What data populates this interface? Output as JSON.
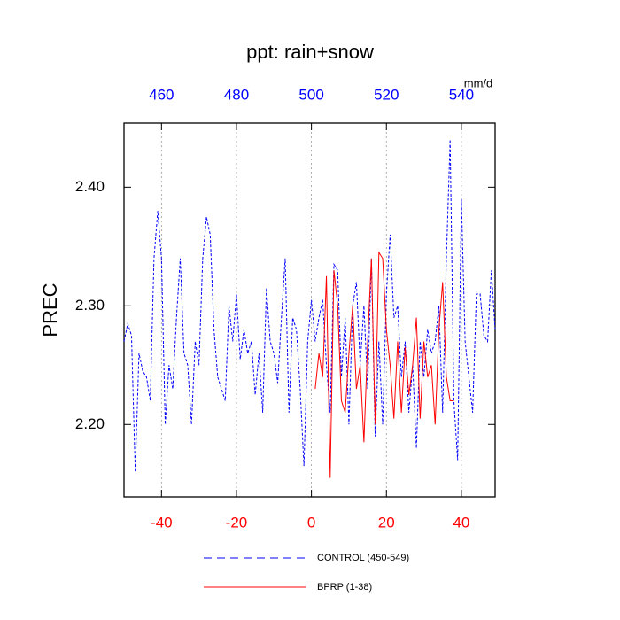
{
  "chart_data": {
    "type": "line",
    "title": "ppt: rain+snow",
    "ylabel": "PREC",
    "units": "mm/d",
    "xlim": [
      -50,
      49
    ],
    "xticks": [
      -40,
      -20,
      0,
      20,
      40
    ],
    "xtick_color": "#ff0000",
    "x2lim": [
      450,
      549
    ],
    "x2ticks": [
      460,
      480,
      500,
      520,
      540
    ],
    "x2tick_color": "#0000ff",
    "ylim": [
      2.139,
      2.454
    ],
    "yticks": [
      {
        "value": 2.2,
        "label": "2.20"
      },
      {
        "value": 2.3,
        "label": "2.30"
      },
      {
        "value": 2.4,
        "label": "2.40"
      }
    ],
    "grid": true,
    "series": [
      {
        "name": "CONTROL (450-549)",
        "color": "#0000ff",
        "dashed": true,
        "x": [
          -50,
          -49,
          -48,
          -47,
          -46,
          -45,
          -44,
          -43,
          -42,
          -41,
          -40,
          -39,
          -38,
          -37,
          -36,
          -35,
          -34,
          -33,
          -32,
          -31,
          -30,
          -29,
          -28,
          -27,
          -26,
          -25,
          -24,
          -23,
          -22,
          -21,
          -20,
          -19,
          -18,
          -17,
          -16,
          -15,
          -14,
          -13,
          -12,
          -11,
          -10,
          -9,
          -8,
          -7,
          -6,
          -5,
          -4,
          -3,
          -2,
          -1,
          0,
          1,
          2,
          3,
          4,
          5,
          6,
          7,
          8,
          9,
          10,
          11,
          12,
          13,
          14,
          15,
          16,
          17,
          18,
          19,
          20,
          21,
          22,
          23,
          24,
          25,
          26,
          27,
          28,
          29,
          30,
          31,
          32,
          33,
          34,
          35,
          36,
          37,
          38,
          39,
          40,
          41,
          42,
          43,
          44,
          45,
          46,
          47,
          48,
          49
        ],
        "values": [
          2.27,
          2.285,
          2.275,
          2.16,
          2.26,
          2.245,
          2.24,
          2.22,
          2.34,
          2.38,
          2.34,
          2.2,
          2.25,
          2.23,
          2.29,
          2.34,
          2.26,
          2.25,
          2.2,
          2.27,
          2.25,
          2.34,
          2.375,
          2.36,
          2.28,
          2.24,
          2.23,
          2.22,
          2.3,
          2.27,
          2.31,
          2.255,
          2.28,
          2.26,
          2.27,
          2.225,
          2.26,
          2.21,
          2.315,
          2.27,
          2.26,
          2.235,
          2.29,
          2.34,
          2.21,
          2.29,
          2.28,
          2.23,
          2.165,
          2.27,
          2.305,
          2.27,
          2.29,
          2.305,
          2.25,
          2.21,
          2.335,
          2.33,
          2.24,
          2.29,
          2.2,
          2.3,
          2.32,
          2.25,
          2.3,
          2.23,
          2.34,
          2.19,
          2.27,
          2.2,
          2.31,
          2.36,
          2.29,
          2.3,
          2.24,
          2.27,
          2.21,
          2.25,
          2.18,
          2.27,
          2.24,
          2.28,
          2.26,
          2.27,
          2.3,
          2.21,
          2.34,
          2.44,
          2.22,
          2.17,
          2.39,
          2.27,
          2.24,
          2.21,
          2.31,
          2.31,
          2.275,
          2.27,
          2.33,
          2.28
        ]
      },
      {
        "name": "BPRP (1-38)",
        "color": "#ff0000",
        "dashed": false,
        "x": [
          1,
          2,
          3,
          4,
          5,
          6,
          7,
          8,
          9,
          10,
          11,
          12,
          13,
          14,
          15,
          16,
          17,
          18,
          19,
          20,
          21,
          22,
          23,
          24,
          25,
          26,
          27,
          28,
          29,
          30,
          31,
          32,
          33,
          34,
          35,
          36,
          37,
          38
        ],
        "values": [
          2.23,
          2.26,
          2.24,
          2.325,
          2.155,
          2.33,
          2.3,
          2.22,
          2.21,
          2.26,
          2.3,
          2.23,
          2.25,
          2.185,
          2.27,
          2.34,
          2.2,
          2.345,
          2.34,
          2.28,
          2.25,
          2.205,
          2.27,
          2.21,
          2.265,
          2.225,
          2.25,
          2.29,
          2.205,
          2.27,
          2.24,
          2.25,
          2.2,
          2.28,
          2.32,
          2.24,
          2.22,
          2.22
        ]
      }
    ]
  }
}
